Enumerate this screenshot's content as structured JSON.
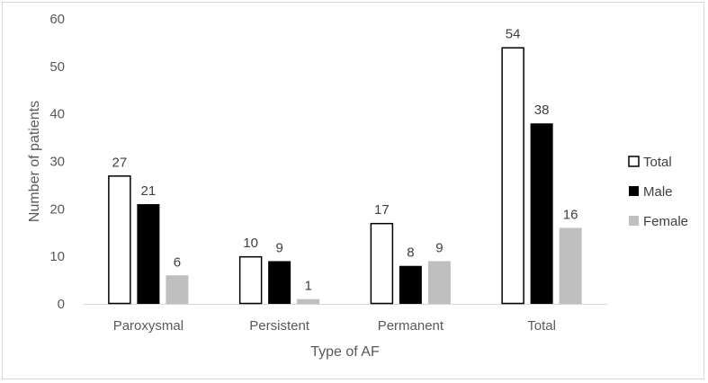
{
  "chart_data": {
    "type": "bar",
    "title": "",
    "xlabel": "Type of AF",
    "ylabel": "Number of patients",
    "ylim": [
      0,
      60
    ],
    "yticks": [
      0,
      10,
      20,
      30,
      40,
      50,
      60
    ],
    "categories": [
      "Paroxysmal",
      "Persistent",
      "Permanent",
      "Total"
    ],
    "series": [
      {
        "name": "Total",
        "values": [
          27,
          10,
          17,
          54
        ],
        "fill": "#ffffff",
        "stroke": "#000000"
      },
      {
        "name": "Male",
        "values": [
          21,
          9,
          8,
          38
        ],
        "fill": "#000000",
        "stroke": "#000000"
      },
      {
        "name": "Female",
        "values": [
          6,
          1,
          9,
          16
        ],
        "fill": "#bfbfbf",
        "stroke": "#bfbfbf"
      }
    ],
    "grid": false,
    "legend_position": "right"
  }
}
